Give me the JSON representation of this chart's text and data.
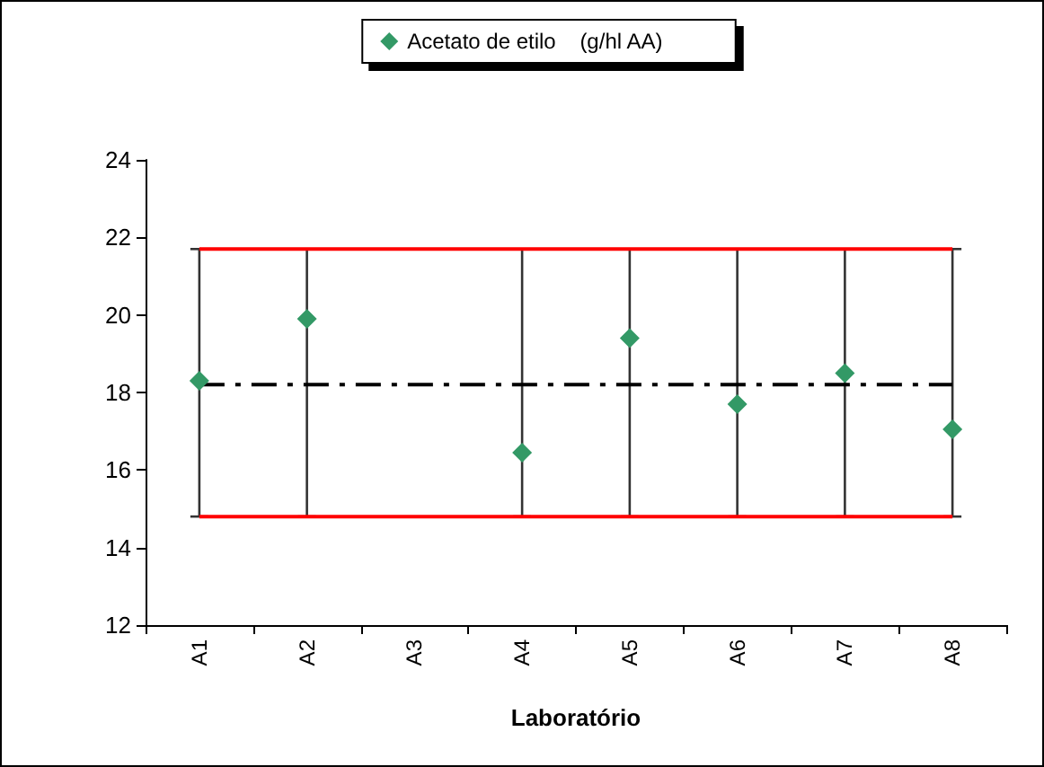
{
  "chart_data": {
    "type": "scatter",
    "xlabel": "Laboratório",
    "categories": [
      "A1",
      "A2",
      "A3",
      "A4",
      "A5",
      "A6",
      "A7",
      "A8"
    ],
    "series": [
      {
        "type": "line",
        "color": "#ff0000",
        "values": [
          21.7,
          21.7,
          21.7,
          21.7,
          21.7,
          21.7,
          21.7,
          21.7
        ]
      },
      {
        "type": "line",
        "color": "#ff0000",
        "values": [
          14.8,
          14.8,
          14.8,
          14.8,
          14.8,
          14.8,
          14.8,
          14.8
        ]
      },
      {
        "type": "line",
        "color": "#000000",
        "line_style": "dashed",
        "values": [
          18.2,
          18.2,
          18.2,
          18.2,
          18.2,
          18.2,
          18.2,
          18.2
        ]
      },
      {
        "name": "Acetato de etilo    (g/hl AA)",
        "color": "#339966",
        "marker": "diamond",
        "values": [
          18.3,
          19.9,
          null,
          16.45,
          19.4,
          17.7,
          18.5,
          17.05
        ],
        "errors": [
          [
            14.8,
            21.7
          ],
          [
            14.8,
            21.7
          ],
          null,
          [
            14.8,
            21.7
          ],
          [
            14.8,
            21.7
          ],
          [
            14.8,
            21.7
          ],
          [
            14.8,
            21.7
          ],
          [
            14.8,
            21.7
          ]
        ]
      }
    ],
    "ylim": [
      12,
      24
    ],
    "yticks": [
      12,
      14,
      16,
      18,
      20,
      22,
      24
    ],
    "grid": false,
    "legend": "top"
  }
}
